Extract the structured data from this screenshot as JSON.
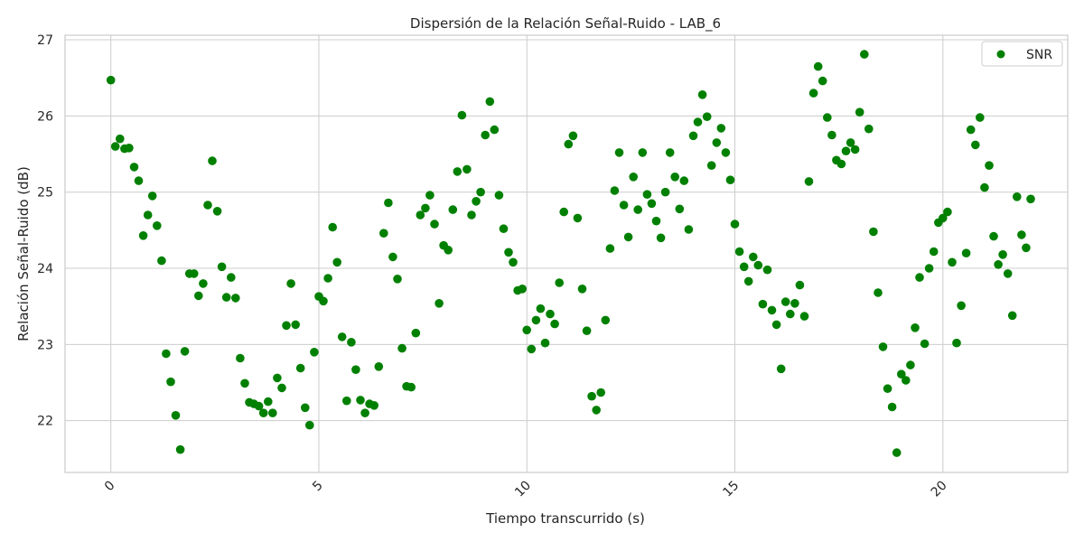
{
  "chart_data": {
    "type": "scatter",
    "title": "Dispersión de la Relación Señal-Ruido - LAB_6",
    "xlabel": "Tiempo transcurrido (s)",
    "ylabel": "Relación Señal-Ruido (dB)",
    "xlim": [
      -1.1,
      23.0
    ],
    "ylim": [
      21.32,
      27.06
    ],
    "xticks": [
      "0",
      "5",
      "10",
      "15",
      "20"
    ],
    "yticks": [
      "22",
      "23",
      "24",
      "25",
      "26",
      "27"
    ],
    "grid": true,
    "legend": {
      "position": "top-right",
      "entries": [
        "SNR"
      ]
    },
    "series": [
      {
        "name": "SNR",
        "color": "#008000",
        "points": [
          [
            0.0,
            26.47
          ],
          [
            0.11,
            25.6
          ],
          [
            0.22,
            25.7
          ],
          [
            0.33,
            25.57
          ],
          [
            0.44,
            25.58
          ],
          [
            0.56,
            25.33
          ],
          [
            0.67,
            25.15
          ],
          [
            0.78,
            24.43
          ],
          [
            0.89,
            24.7
          ],
          [
            1.0,
            24.95
          ],
          [
            1.11,
            24.56
          ],
          [
            1.22,
            24.1
          ],
          [
            1.33,
            22.88
          ],
          [
            1.44,
            22.51
          ],
          [
            1.56,
            22.07
          ],
          [
            1.67,
            21.62
          ],
          [
            1.78,
            22.91
          ],
          [
            1.89,
            23.93
          ],
          [
            2.0,
            23.93
          ],
          [
            2.11,
            23.64
          ],
          [
            2.22,
            23.8
          ],
          [
            2.33,
            24.83
          ],
          [
            2.44,
            25.41
          ],
          [
            2.56,
            24.75
          ],
          [
            2.67,
            24.02
          ],
          [
            2.78,
            23.62
          ],
          [
            2.89,
            23.88
          ],
          [
            3.0,
            23.61
          ],
          [
            3.11,
            22.82
          ],
          [
            3.22,
            22.49
          ],
          [
            3.33,
            22.24
          ],
          [
            3.44,
            22.22
          ],
          [
            3.56,
            22.19
          ],
          [
            3.67,
            22.1
          ],
          [
            3.78,
            22.25
          ],
          [
            3.89,
            22.1
          ],
          [
            4.0,
            22.56
          ],
          [
            4.11,
            22.43
          ],
          [
            4.22,
            23.25
          ],
          [
            4.33,
            23.8
          ],
          [
            4.44,
            23.26
          ],
          [
            4.56,
            22.69
          ],
          [
            4.67,
            22.17
          ],
          [
            4.78,
            21.94
          ],
          [
            4.89,
            22.9
          ],
          [
            5.0,
            23.63
          ],
          [
            5.11,
            23.57
          ],
          [
            5.22,
            23.87
          ],
          [
            5.33,
            24.54
          ],
          [
            5.44,
            24.08
          ],
          [
            5.56,
            23.1
          ],
          [
            5.67,
            22.26
          ],
          [
            5.78,
            23.03
          ],
          [
            5.89,
            22.67
          ],
          [
            6.0,
            22.27
          ],
          [
            6.11,
            22.1
          ],
          [
            6.22,
            22.22
          ],
          [
            6.33,
            22.2
          ],
          [
            6.44,
            22.71
          ],
          [
            6.56,
            24.46
          ],
          [
            6.67,
            24.86
          ],
          [
            6.78,
            24.15
          ],
          [
            6.89,
            23.86
          ],
          [
            7.0,
            22.95
          ],
          [
            7.11,
            22.45
          ],
          [
            7.22,
            22.44
          ],
          [
            7.33,
            23.15
          ],
          [
            7.44,
            24.7
          ],
          [
            7.56,
            24.79
          ],
          [
            7.67,
            24.96
          ],
          [
            7.78,
            24.58
          ],
          [
            7.89,
            23.54
          ],
          [
            8.0,
            24.3
          ],
          [
            8.11,
            24.24
          ],
          [
            8.22,
            24.77
          ],
          [
            8.33,
            25.27
          ],
          [
            8.44,
            26.01
          ],
          [
            8.56,
            25.3
          ],
          [
            8.67,
            24.7
          ],
          [
            8.78,
            24.88
          ],
          [
            8.89,
            25.0
          ],
          [
            9.0,
            25.75
          ],
          [
            9.11,
            26.19
          ],
          [
            9.22,
            25.82
          ],
          [
            9.33,
            24.96
          ],
          [
            9.44,
            24.52
          ],
          [
            9.56,
            24.21
          ],
          [
            9.67,
            24.08
          ],
          [
            9.78,
            23.71
          ],
          [
            9.89,
            23.73
          ],
          [
            10.0,
            23.19
          ],
          [
            10.11,
            22.94
          ],
          [
            10.22,
            23.32
          ],
          [
            10.33,
            23.47
          ],
          [
            10.44,
            23.02
          ],
          [
            10.56,
            23.4
          ],
          [
            10.67,
            23.27
          ],
          [
            10.78,
            23.81
          ],
          [
            10.89,
            24.74
          ],
          [
            11.0,
            25.63
          ],
          [
            11.11,
            25.74
          ],
          [
            11.22,
            24.66
          ],
          [
            11.33,
            23.73
          ],
          [
            11.44,
            23.18
          ],
          [
            11.56,
            22.32
          ],
          [
            11.67,
            22.14
          ],
          [
            11.78,
            22.37
          ],
          [
            11.89,
            23.32
          ],
          [
            12.0,
            24.26
          ],
          [
            12.11,
            25.02
          ],
          [
            12.22,
            25.52
          ],
          [
            12.33,
            24.83
          ],
          [
            12.44,
            24.41
          ],
          [
            12.56,
            25.2
          ],
          [
            12.67,
            24.77
          ],
          [
            12.78,
            25.52
          ],
          [
            12.89,
            24.97
          ],
          [
            13.0,
            24.85
          ],
          [
            13.11,
            24.62
          ],
          [
            13.22,
            24.4
          ],
          [
            13.33,
            25.0
          ],
          [
            13.44,
            25.52
          ],
          [
            13.56,
            25.2
          ],
          [
            13.67,
            24.78
          ],
          [
            13.78,
            25.15
          ],
          [
            13.89,
            24.51
          ],
          [
            14.0,
            25.74
          ],
          [
            14.11,
            25.92
          ],
          [
            14.22,
            26.28
          ],
          [
            14.33,
            25.99
          ],
          [
            14.44,
            25.35
          ],
          [
            14.56,
            25.65
          ],
          [
            14.67,
            25.84
          ],
          [
            14.78,
            25.52
          ],
          [
            14.89,
            25.16
          ],
          [
            15.0,
            24.58
          ],
          [
            15.11,
            24.22
          ],
          [
            15.22,
            24.02
          ],
          [
            15.33,
            23.83
          ],
          [
            15.44,
            24.15
          ],
          [
            15.56,
            24.04
          ],
          [
            15.67,
            23.53
          ],
          [
            15.78,
            23.98
          ],
          [
            15.89,
            23.45
          ],
          [
            16.0,
            23.26
          ],
          [
            16.11,
            22.68
          ],
          [
            16.22,
            23.56
          ],
          [
            16.33,
            23.4
          ],
          [
            16.44,
            23.54
          ],
          [
            16.56,
            23.78
          ],
          [
            16.67,
            23.37
          ],
          [
            16.78,
            25.14
          ],
          [
            16.89,
            26.3
          ],
          [
            17.0,
            26.65
          ],
          [
            17.11,
            26.46
          ],
          [
            17.22,
            25.98
          ],
          [
            17.33,
            25.75
          ],
          [
            17.44,
            25.42
          ],
          [
            17.56,
            25.37
          ],
          [
            17.67,
            25.54
          ],
          [
            17.78,
            25.65
          ],
          [
            17.89,
            25.56
          ],
          [
            18.0,
            26.05
          ],
          [
            18.11,
            26.81
          ],
          [
            18.22,
            25.83
          ],
          [
            18.33,
            24.48
          ],
          [
            18.44,
            23.68
          ],
          [
            18.56,
            22.97
          ],
          [
            18.67,
            22.42
          ],
          [
            18.78,
            22.18
          ],
          [
            18.89,
            21.58
          ],
          [
            19.0,
            22.61
          ],
          [
            19.11,
            22.53
          ],
          [
            19.22,
            22.73
          ],
          [
            19.33,
            23.22
          ],
          [
            19.44,
            23.88
          ],
          [
            19.56,
            23.01
          ],
          [
            19.67,
            24.0
          ],
          [
            19.78,
            24.22
          ],
          [
            19.89,
            24.6
          ],
          [
            20.0,
            24.66
          ],
          [
            20.11,
            24.74
          ],
          [
            20.22,
            24.08
          ],
          [
            20.33,
            23.02
          ],
          [
            20.44,
            23.51
          ],
          [
            20.56,
            24.2
          ],
          [
            20.67,
            25.82
          ],
          [
            20.78,
            25.62
          ],
          [
            20.89,
            25.98
          ],
          [
            21.0,
            25.06
          ],
          [
            21.11,
            25.35
          ],
          [
            21.22,
            24.42
          ],
          [
            21.33,
            24.05
          ],
          [
            21.44,
            24.18
          ],
          [
            21.56,
            23.93
          ],
          [
            21.67,
            23.38
          ],
          [
            21.78,
            24.94
          ],
          [
            21.89,
            24.44
          ],
          [
            22.0,
            24.27
          ],
          [
            22.11,
            24.91
          ]
        ]
      }
    ]
  }
}
